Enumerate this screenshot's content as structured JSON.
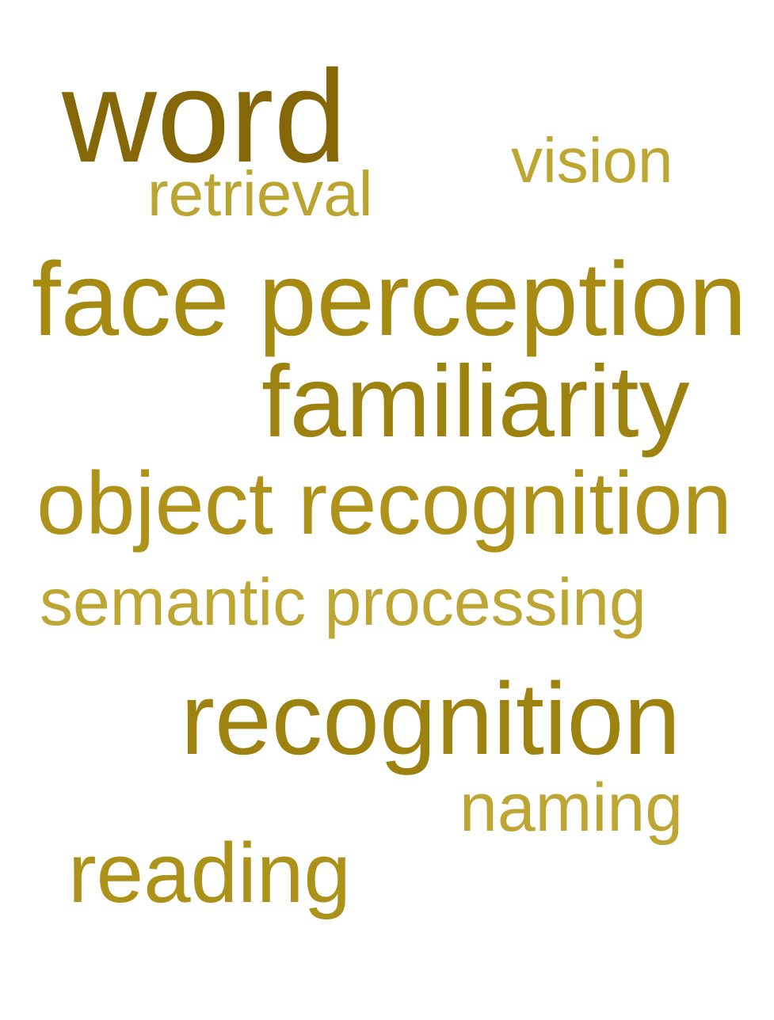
{
  "words": [
    {
      "text": "word",
      "color": "#856708"
    },
    {
      "text": "vision",
      "color": "#bda631"
    },
    {
      "text": "retrieval",
      "color": "#bca431"
    },
    {
      "text": "face perception",
      "color": "#a68a12"
    },
    {
      "text": "familiarity",
      "color": "#9e8210"
    },
    {
      "text": "object recognition",
      "color": "#ae9219"
    },
    {
      "text": "semantic processing",
      "color": "#bda633"
    },
    {
      "text": "recognition",
      "color": "#9e8210"
    },
    {
      "text": "naming",
      "color": "#bda633"
    },
    {
      "text": "reading",
      "color": "#ad9219"
    }
  ]
}
